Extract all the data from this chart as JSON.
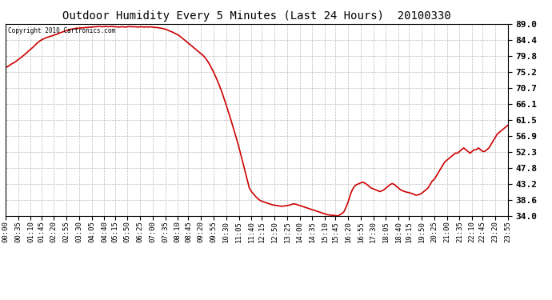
{
  "title": "Outdoor Humidity Every 5 Minutes (Last 24 Hours)  20100330",
  "copyright_text": "Copyright 2010 Cartronics.com",
  "line_color": "#cc0000",
  "bg_color": "#ffffff",
  "grid_color": "#bbbbbb",
  "yticks": [
    34.0,
    38.6,
    43.2,
    47.8,
    52.3,
    56.9,
    61.5,
    66.1,
    70.7,
    75.2,
    79.8,
    84.4,
    89.0
  ],
  "xtick_labels": [
    "00:00",
    "00:35",
    "01:10",
    "01:45",
    "02:20",
    "02:55",
    "03:30",
    "04:05",
    "04:40",
    "05:15",
    "05:50",
    "06:25",
    "07:00",
    "07:35",
    "08:10",
    "08:45",
    "09:20",
    "09:55",
    "10:30",
    "11:05",
    "11:40",
    "12:15",
    "12:50",
    "13:25",
    "14:00",
    "14:35",
    "15:10",
    "15:45",
    "16:20",
    "16:55",
    "17:30",
    "18:05",
    "18:40",
    "19:15",
    "19:50",
    "20:25",
    "21:00",
    "21:35",
    "22:10",
    "22:45",
    "23:20",
    "23:55"
  ],
  "humidity_values": [
    76.5,
    76.8,
    77.2,
    77.6,
    77.9,
    78.3,
    78.8,
    79.2,
    79.7,
    80.2,
    80.7,
    81.3,
    81.8,
    82.3,
    82.9,
    83.5,
    84.0,
    84.4,
    84.7,
    85.0,
    85.2,
    85.4,
    85.6,
    85.8,
    86.0,
    86.2,
    86.5,
    86.7,
    86.9,
    87.1,
    87.3,
    87.5,
    87.6,
    87.7,
    87.8,
    87.8,
    87.9,
    87.9,
    88.0,
    88.0,
    88.1,
    88.1,
    88.2,
    88.2,
    88.3,
    88.3,
    88.2,
    88.3,
    88.3,
    88.2,
    88.3,
    88.3,
    88.2,
    88.2,
    88.1,
    88.2,
    88.2,
    88.1,
    88.2,
    88.3,
    88.2,
    88.2,
    88.2,
    88.1,
    88.2,
    88.2,
    88.1,
    88.2,
    88.1,
    88.2,
    88.1,
    88.0,
    88.0,
    87.9,
    87.8,
    87.7,
    87.5,
    87.3,
    87.0,
    86.8,
    86.5,
    86.2,
    85.9,
    85.5,
    85.0,
    84.5,
    84.0,
    83.5,
    83.0,
    82.5,
    82.0,
    81.5,
    81.0,
    80.5,
    80.0,
    79.3,
    78.5,
    77.5,
    76.4,
    75.2,
    73.9,
    72.5,
    71.0,
    69.4,
    67.6,
    65.8,
    63.9,
    62.0,
    60.0,
    58.0,
    55.9,
    53.8,
    51.5,
    49.2,
    46.8,
    44.4,
    42.0,
    41.0,
    40.3,
    39.6,
    39.0,
    38.5,
    38.2,
    38.0,
    37.8,
    37.6,
    37.4,
    37.2,
    37.1,
    37.0,
    36.9,
    36.8,
    36.8,
    36.9,
    37.0,
    37.1,
    37.3,
    37.5,
    37.4,
    37.2,
    37.0,
    36.8,
    36.6,
    36.4,
    36.2,
    36.0,
    35.8,
    35.6,
    35.4,
    35.2,
    35.0,
    34.8,
    34.6,
    34.4,
    34.3,
    34.2,
    34.2,
    34.1,
    34.0,
    34.3,
    34.7,
    35.2,
    36.5,
    38.0,
    40.0,
    41.5,
    42.5,
    43.0,
    43.2,
    43.5,
    43.7,
    43.4,
    43.0,
    42.5,
    42.0,
    41.8,
    41.5,
    41.3,
    41.0,
    41.2,
    41.5,
    42.0,
    42.5,
    43.0,
    43.3,
    43.0,
    42.5,
    42.0,
    41.5,
    41.2,
    41.0,
    40.8,
    40.7,
    40.5,
    40.3,
    40.0,
    40.0,
    40.2,
    40.5,
    41.0,
    41.5,
    42.0,
    43.0,
    44.0,
    44.5,
    45.5,
    46.5,
    47.5,
    48.5,
    49.5,
    50.0,
    50.5,
    51.0,
    51.5,
    52.0,
    52.0,
    52.5,
    53.0,
    53.5,
    53.0,
    52.5,
    52.0,
    52.5,
    53.0,
    53.0,
    53.5,
    53.0,
    52.5,
    52.5,
    53.0,
    53.5,
    54.5,
    55.5,
    56.5,
    57.5,
    58.0,
    58.5,
    59.0,
    59.5,
    60.0
  ]
}
